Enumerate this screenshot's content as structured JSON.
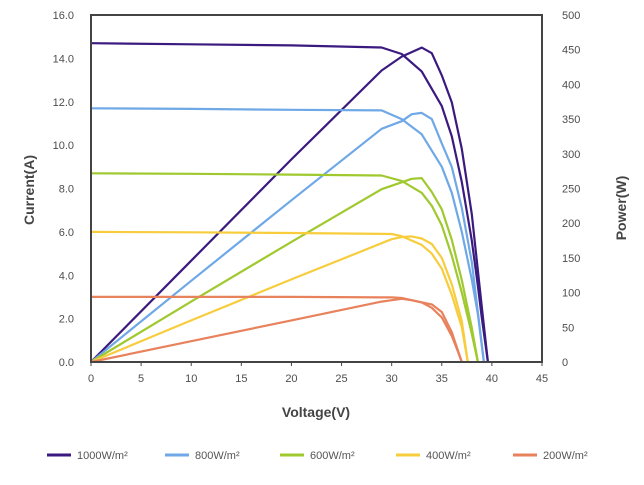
{
  "chart_data": {
    "type": "line",
    "title": "",
    "xlabel": "Voltage(V)",
    "ylabel_left": "Current(A)",
    "ylabel_right": "Power(W)",
    "xlim": [
      0,
      45
    ],
    "ylim_left": [
      0,
      16
    ],
    "ylim_right": [
      0,
      500
    ],
    "x_ticks": [
      "0",
      "5",
      "10",
      "15",
      "20",
      "25",
      "30",
      "35",
      "40",
      "45"
    ],
    "y_left_ticks": [
      "0.0",
      "2.0",
      "4.0",
      "6.0",
      "8.0",
      "10.0",
      "12.0",
      "14.0",
      "16.0"
    ],
    "y_right_ticks": [
      "0",
      "50",
      "100",
      "150",
      "200",
      "250",
      "300",
      "350",
      "400",
      "450",
      "500"
    ],
    "grid": false,
    "legend_position": "bottom",
    "series": [
      {
        "name": "1000W/m²",
        "color": "#3b1a80",
        "iv_curve": [
          [
            0,
            14.7
          ],
          [
            10,
            14.65
          ],
          [
            20,
            14.6
          ],
          [
            29,
            14.5
          ],
          [
            31,
            14.2
          ],
          [
            33,
            13.4
          ],
          [
            35,
            11.8
          ],
          [
            36,
            10.4
          ],
          [
            37,
            8.3
          ],
          [
            38,
            5.6
          ],
          [
            38.6,
            3.5
          ],
          [
            39,
            2.0
          ],
          [
            39.6,
            0
          ]
        ],
        "pv_curve": [
          [
            0,
            0
          ],
          [
            10,
            146
          ],
          [
            20,
            292
          ],
          [
            29,
            420
          ],
          [
            31,
            440
          ],
          [
            33,
            453
          ],
          [
            34,
            445
          ],
          [
            35,
            413
          ],
          [
            36,
            374
          ],
          [
            37,
            307
          ],
          [
            38,
            213
          ],
          [
            39,
            78
          ],
          [
            39.6,
            0
          ]
        ]
      },
      {
        "name": "800W/m²",
        "color": "#6fa8e6",
        "iv_curve": [
          [
            0,
            11.7
          ],
          [
            10,
            11.67
          ],
          [
            20,
            11.63
          ],
          [
            29,
            11.6
          ],
          [
            31,
            11.2
          ],
          [
            33,
            10.5
          ],
          [
            35,
            9.0
          ],
          [
            36,
            7.8
          ],
          [
            37,
            6.0
          ],
          [
            38,
            3.8
          ],
          [
            38.6,
            2.2
          ],
          [
            39.2,
            0
          ]
        ],
        "pv_curve": [
          [
            0,
            0
          ],
          [
            10,
            117
          ],
          [
            20,
            233
          ],
          [
            29,
            336
          ],
          [
            31,
            347
          ],
          [
            32,
            357
          ],
          [
            33,
            359
          ],
          [
            34,
            350
          ],
          [
            35,
            315
          ],
          [
            36,
            281
          ],
          [
            37,
            222
          ],
          [
            38,
            144
          ],
          [
            39.2,
            0
          ]
        ]
      },
      {
        "name": "600W/m²",
        "color": "#9fc92e",
        "iv_curve": [
          [
            0,
            8.7
          ],
          [
            10,
            8.68
          ],
          [
            20,
            8.64
          ],
          [
            29,
            8.6
          ],
          [
            31,
            8.35
          ],
          [
            33,
            7.8
          ],
          [
            34,
            7.2
          ],
          [
            35,
            6.3
          ],
          [
            36,
            4.9
          ],
          [
            37,
            3.2
          ],
          [
            38,
            1.3
          ],
          [
            38.6,
            0
          ]
        ],
        "pv_curve": [
          [
            0,
            0
          ],
          [
            10,
            87
          ],
          [
            20,
            173
          ],
          [
            29,
            249
          ],
          [
            31,
            259
          ],
          [
            32,
            264
          ],
          [
            33,
            265
          ],
          [
            34,
            245
          ],
          [
            35,
            220
          ],
          [
            36,
            176
          ],
          [
            37,
            118
          ],
          [
            38,
            49
          ],
          [
            38.6,
            0
          ]
        ]
      },
      {
        "name": "400W/m²",
        "color": "#f7cd3d",
        "iv_curve": [
          [
            0,
            6.0
          ],
          [
            10,
            5.98
          ],
          [
            20,
            5.95
          ],
          [
            30,
            5.9
          ],
          [
            31,
            5.8
          ],
          [
            33,
            5.4
          ],
          [
            34,
            5.0
          ],
          [
            35,
            4.3
          ],
          [
            36,
            3.1
          ],
          [
            37,
            1.6
          ],
          [
            37.6,
            0
          ]
        ],
        "pv_curve": [
          [
            0,
            0
          ],
          [
            10,
            60
          ],
          [
            20,
            119
          ],
          [
            30,
            177
          ],
          [
            31,
            180
          ],
          [
            32,
            181
          ],
          [
            33,
            178
          ],
          [
            34,
            170
          ],
          [
            35,
            150
          ],
          [
            36,
            112
          ],
          [
            37,
            59
          ],
          [
            37.6,
            0
          ]
        ]
      },
      {
        "name": "200W/m²",
        "color": "#e8825c",
        "iv_curve": [
          [
            0,
            3.0
          ],
          [
            10,
            3.0
          ],
          [
            20,
            3.0
          ],
          [
            30,
            2.98
          ],
          [
            31,
            2.95
          ],
          [
            33,
            2.75
          ],
          [
            34,
            2.5
          ],
          [
            35,
            2.05
          ],
          [
            36,
            1.2
          ],
          [
            36.6,
            0.5
          ],
          [
            37,
            0
          ]
        ],
        "pv_curve": [
          [
            0,
            0
          ],
          [
            10,
            30
          ],
          [
            20,
            60
          ],
          [
            29,
            87
          ],
          [
            30,
            89
          ],
          [
            31,
            91
          ],
          [
            32,
            89
          ],
          [
            33,
            86
          ],
          [
            34,
            83
          ],
          [
            35,
            72
          ],
          [
            36,
            43
          ],
          [
            37,
            0
          ]
        ]
      }
    ]
  }
}
